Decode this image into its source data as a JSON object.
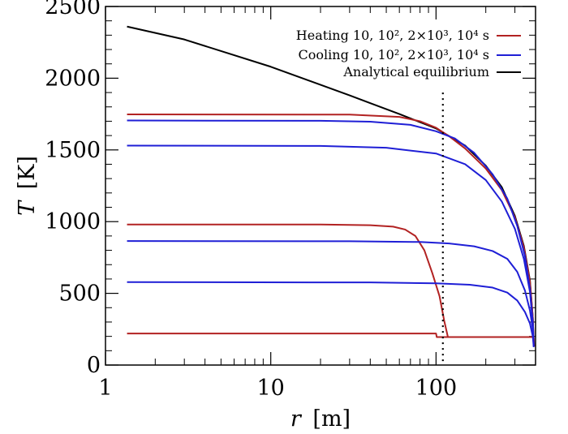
{
  "chart_data": {
    "type": "line",
    "xscale": "log",
    "xlim": [
      1,
      400
    ],
    "ylim": [
      0,
      2500
    ],
    "x_ticks": [
      1,
      10,
      100
    ],
    "x_tick_labels": [
      "1",
      "10",
      "100"
    ],
    "y_ticks": [
      0,
      500,
      1000,
      1500,
      2000,
      2500
    ],
    "y_tick_labels": [
      "0",
      "500",
      "1000",
      "1500",
      "2000",
      "2500"
    ],
    "xlabel": {
      "symbol": "r",
      "unit": "[m]"
    },
    "ylabel": {
      "symbol": "T",
      "unit": "[K]"
    },
    "grid": false,
    "legend_position": "top-right",
    "legend": [
      {
        "text": "Heating 10, 10², 2×10³, 10⁴ s",
        "color": "#b22222"
      },
      {
        "text": "Cooling 10, 10², 2×10³, 10⁴ s",
        "color": "#1f1fd6"
      },
      {
        "text": "Analytical equilibrium",
        "color": "#000000"
      }
    ],
    "reference_line": {
      "x": 110,
      "style": "dotted",
      "color": "#000000"
    },
    "series": [
      {
        "group": "Analytical equilibrium",
        "color": "#000000",
        "points": [
          [
            1.35,
            2360
          ],
          [
            3,
            2270
          ],
          [
            10,
            2080
          ],
          [
            30,
            1880
          ],
          [
            60,
            1750
          ],
          [
            100,
            1650
          ],
          [
            150,
            1530
          ],
          [
            200,
            1390
          ],
          [
            250,
            1240
          ],
          [
            300,
            1040
          ],
          [
            340,
            830
          ],
          [
            370,
            590
          ],
          [
            385,
            330
          ],
          [
            390,
            150
          ]
        ]
      },
      {
        "group": "Heating",
        "label": "10 s",
        "color": "#b22222",
        "points": [
          [
            1.35,
            220
          ],
          [
            100,
            220
          ],
          [
            101,
            195
          ],
          [
            390,
            195
          ]
        ]
      },
      {
        "group": "Heating",
        "label": "10² s",
        "color": "#b22222",
        "points": [
          [
            1.35,
            980
          ],
          [
            20,
            980
          ],
          [
            40,
            975
          ],
          [
            55,
            965
          ],
          [
            65,
            945
          ],
          [
            75,
            900
          ],
          [
            85,
            800
          ],
          [
            95,
            640
          ],
          [
            105,
            480
          ],
          [
            112,
            310
          ],
          [
            118,
            195
          ],
          [
            390,
            195
          ],
          [
            393,
            130
          ]
        ]
      },
      {
        "group": "Heating",
        "label": "2×10³ s",
        "color": "#b22222",
        "points": [
          [
            1.35,
            1748
          ],
          [
            30,
            1746
          ],
          [
            60,
            1730
          ],
          [
            80,
            1700
          ],
          [
            100,
            1655
          ],
          [
            120,
            1595
          ],
          [
            150,
            1510
          ],
          [
            200,
            1370
          ],
          [
            250,
            1220
          ],
          [
            300,
            1030
          ],
          [
            340,
            820
          ],
          [
            370,
            580
          ],
          [
            385,
            330
          ],
          [
            390,
            150
          ]
        ]
      },
      {
        "group": "Cooling",
        "label": "10 s",
        "color": "#1f1fd6",
        "points": [
          [
            1.35,
            1705
          ],
          [
            20,
            1703
          ],
          [
            40,
            1697
          ],
          [
            70,
            1675
          ],
          [
            100,
            1630
          ],
          [
            130,
            1580
          ],
          [
            170,
            1480
          ],
          [
            220,
            1330
          ],
          [
            270,
            1160
          ],
          [
            310,
            970
          ],
          [
            345,
            760
          ],
          [
            370,
            530
          ],
          [
            385,
            300
          ],
          [
            390,
            140
          ]
        ]
      },
      {
        "group": "Cooling",
        "label": "10² s",
        "color": "#1f1fd6",
        "points": [
          [
            1.35,
            1530
          ],
          [
            20,
            1528
          ],
          [
            50,
            1515
          ],
          [
            100,
            1475
          ],
          [
            150,
            1400
          ],
          [
            200,
            1290
          ],
          [
            250,
            1140
          ],
          [
            300,
            950
          ],
          [
            340,
            740
          ],
          [
            370,
            510
          ],
          [
            385,
            290
          ],
          [
            390,
            135
          ]
        ]
      },
      {
        "group": "Cooling",
        "label": "2×10³ s",
        "color": "#1f1fd6",
        "points": [
          [
            1.35,
            865
          ],
          [
            30,
            863
          ],
          [
            80,
            858
          ],
          [
            120,
            848
          ],
          [
            170,
            828
          ],
          [
            220,
            795
          ],
          [
            270,
            740
          ],
          [
            310,
            650
          ],
          [
            345,
            520
          ],
          [
            370,
            380
          ],
          [
            385,
            250
          ],
          [
            390,
            130
          ]
        ]
      },
      {
        "group": "Cooling",
        "label": "10⁴ s",
        "color": "#1f1fd6",
        "points": [
          [
            1.35,
            578
          ],
          [
            40,
            576
          ],
          [
            100,
            570
          ],
          [
            160,
            560
          ],
          [
            220,
            540
          ],
          [
            270,
            505
          ],
          [
            310,
            450
          ],
          [
            345,
            370
          ],
          [
            370,
            290
          ],
          [
            385,
            200
          ],
          [
            390,
            125
          ]
        ]
      }
    ]
  }
}
